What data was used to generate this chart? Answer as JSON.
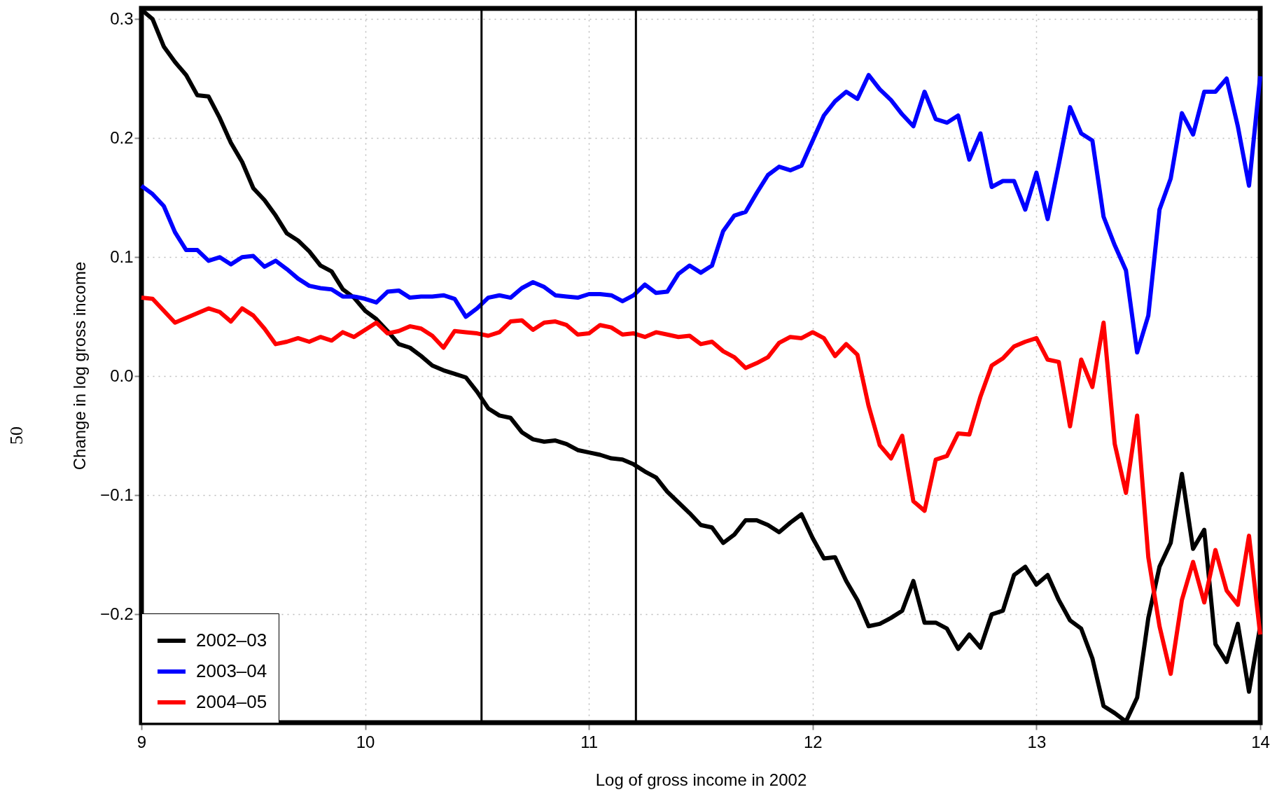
{
  "chart_data": {
    "type": "line",
    "xlabel": "Log of gross income in 2002",
    "ylabel": "Change in log gross income",
    "xlim": [
      9,
      14
    ],
    "ylim": [
      -0.291,
      0.309
    ],
    "xticks": [
      9,
      10,
      11,
      12,
      13,
      14
    ],
    "yticks": [
      {
        "value": -0.2,
        "label": "−0.2"
      },
      {
        "value": -0.1,
        "label": "−0.1"
      },
      {
        "value": 0,
        "label": "0.0"
      },
      {
        "value": 0.1,
        "label": "0.1"
      },
      {
        "value": 0.2,
        "label": "0.2"
      },
      {
        "value": 0.3,
        "label": "0.3"
      }
    ],
    "grid": true,
    "legend": "bottom left",
    "line_style": "solid",
    "marker": "none",
    "ref_lines": [
      {
        "axis": "x",
        "value": 10.52,
        "color": "#000000"
      },
      {
        "axis": "x",
        "value": 11.21,
        "color": "#000000"
      }
    ],
    "annotations": [
      "50"
    ],
    "x": [
      9.0,
      9.05,
      9.1,
      9.15,
      9.2,
      9.25,
      9.3,
      9.35,
      9.4,
      9.45,
      9.5,
      9.55,
      9.6,
      9.65,
      9.7,
      9.75,
      9.8,
      9.85,
      9.9,
      9.95,
      10.0,
      10.05,
      10.1,
      10.15,
      10.2,
      10.25,
      10.3,
      10.35,
      10.4,
      10.45,
      10.5,
      10.55,
      10.6,
      10.65,
      10.7,
      10.75,
      10.8,
      10.85,
      10.9,
      10.95,
      11.0,
      11.05,
      11.1,
      11.15,
      11.2,
      11.25,
      11.3,
      11.35,
      11.4,
      11.45,
      11.5,
      11.55,
      11.6,
      11.65,
      11.7,
      11.75,
      11.8,
      11.85,
      11.9,
      11.95,
      12.0,
      12.05,
      12.1,
      12.15,
      12.2,
      12.25,
      12.3,
      12.35,
      12.4,
      12.45,
      12.5,
      12.55,
      12.6,
      12.65,
      12.7,
      12.75,
      12.8,
      12.85,
      12.9,
      12.95,
      13.0,
      13.05,
      13.1,
      13.15,
      13.2,
      13.25,
      13.3,
      13.35,
      13.4,
      13.45,
      13.5,
      13.55,
      13.6,
      13.65,
      13.7,
      13.75,
      13.8,
      13.85,
      13.9,
      13.95,
      14.0
    ],
    "series": [
      {
        "name": "2002–03",
        "color": "#000000",
        "values": [
          0.308,
          0.3,
          0.277,
          0.264,
          0.253,
          0.236,
          0.235,
          0.217,
          0.196,
          0.18,
          0.158,
          0.148,
          0.135,
          0.12,
          0.114,
          0.105,
          0.093,
          0.088,
          0.073,
          0.066,
          0.055,
          0.048,
          0.038,
          0.027,
          0.024,
          0.017,
          0.009,
          0.005,
          0.002,
          -0.001,
          -0.013,
          -0.027,
          -0.033,
          -0.035,
          -0.047,
          -0.053,
          -0.055,
          -0.054,
          -0.057,
          -0.062,
          -0.064,
          -0.066,
          -0.069,
          -0.07,
          -0.074,
          -0.08,
          -0.085,
          -0.097,
          -0.106,
          -0.115,
          -0.125,
          -0.127,
          -0.14,
          -0.133,
          -0.121,
          -0.121,
          -0.125,
          -0.131,
          -0.123,
          -0.116,
          -0.136,
          -0.153,
          -0.152,
          -0.172,
          -0.188,
          -0.21,
          -0.208,
          -0.203,
          -0.197,
          -0.172,
          -0.207,
          -0.207,
          -0.212,
          -0.229,
          -0.217,
          -0.228,
          -0.2,
          -0.197,
          -0.167,
          -0.16,
          -0.175,
          -0.167,
          -0.188,
          -0.205,
          -0.212,
          -0.237,
          -0.277,
          -0.283,
          -0.29,
          -0.27,
          -0.203,
          -0.16,
          -0.14,
          -0.082,
          -0.145,
          -0.129,
          -0.225,
          -0.24,
          -0.208,
          -0.265,
          -0.21
        ]
      },
      {
        "name": "2003–04",
        "color": "#0000ff",
        "values": [
          0.16,
          0.153,
          0.143,
          0.121,
          0.106,
          0.106,
          0.097,
          0.1,
          0.094,
          0.1,
          0.101,
          0.092,
          0.097,
          0.09,
          0.082,
          0.076,
          0.074,
          0.073,
          0.067,
          0.067,
          0.065,
          0.062,
          0.071,
          0.072,
          0.066,
          0.067,
          0.067,
          0.068,
          0.065,
          0.05,
          0.057,
          0.066,
          0.068,
          0.066,
          0.074,
          0.079,
          0.075,
          0.068,
          0.067,
          0.066,
          0.069,
          0.069,
          0.068,
          0.063,
          0.068,
          0.077,
          0.07,
          0.071,
          0.086,
          0.093,
          0.087,
          0.093,
          0.122,
          0.135,
          0.138,
          0.154,
          0.169,
          0.176,
          0.173,
          0.177,
          0.198,
          0.219,
          0.231,
          0.239,
          0.233,
          0.253,
          0.241,
          0.232,
          0.22,
          0.21,
          0.239,
          0.216,
          0.213,
          0.219,
          0.182,
          0.204,
          0.159,
          0.164,
          0.164,
          0.14,
          0.171,
          0.132,
          0.178,
          0.226,
          0.204,
          0.198,
          0.134,
          0.11,
          0.089,
          0.02,
          0.051,
          0.14,
          0.166,
          0.221,
          0.203,
          0.239,
          0.239,
          0.25,
          0.21,
          0.16,
          0.252
        ]
      },
      {
        "name": "2004–05",
        "color": "#ff0000",
        "values": [
          0.066,
          0.065,
          0.055,
          0.045,
          0.049,
          0.053,
          0.057,
          0.054,
          0.046,
          0.057,
          0.051,
          0.04,
          0.027,
          0.029,
          0.032,
          0.029,
          0.033,
          0.03,
          0.037,
          0.033,
          0.039,
          0.045,
          0.036,
          0.038,
          0.042,
          0.04,
          0.034,
          0.024,
          0.038,
          0.037,
          0.036,
          0.034,
          0.037,
          0.046,
          0.047,
          0.039,
          0.045,
          0.046,
          0.043,
          0.035,
          0.036,
          0.043,
          0.041,
          0.035,
          0.036,
          0.033,
          0.037,
          0.035,
          0.033,
          0.034,
          0.027,
          0.029,
          0.021,
          0.016,
          0.007,
          0.011,
          0.016,
          0.028,
          0.033,
          0.032,
          0.037,
          0.032,
          0.017,
          0.027,
          0.018,
          -0.025,
          -0.058,
          -0.069,
          -0.05,
          -0.105,
          -0.113,
          -0.07,
          -0.067,
          -0.048,
          -0.049,
          -0.017,
          0.009,
          0.015,
          0.025,
          0.029,
          0.032,
          0.014,
          0.012,
          -0.042,
          0.014,
          -0.009,
          0.045,
          -0.057,
          -0.098,
          -0.033,
          -0.152,
          -0.21,
          -0.25,
          -0.188,
          -0.156,
          -0.19,
          -0.146,
          -0.18,
          -0.192,
          -0.134,
          -0.217
        ]
      }
    ]
  }
}
